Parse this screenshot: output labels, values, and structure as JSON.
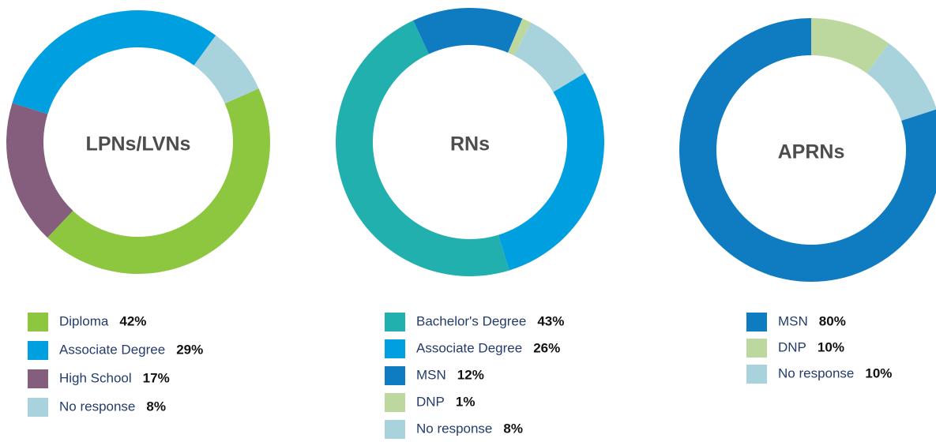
{
  "chart_data": [
    {
      "type": "donut",
      "title": "LPNs/LVNs",
      "categories": [
        "Diploma",
        "Associate Degree",
        "High School",
        "No response"
      ],
      "values": [
        42,
        29,
        17,
        8
      ],
      "value_labels": [
        "42%",
        "29%",
        "17%",
        "8%"
      ],
      "colors": [
        "#8dc63f",
        "#009fdf",
        "#845e7c",
        "#a8d2dc"
      ]
    },
    {
      "type": "donut",
      "title": "RNs",
      "categories": [
        "Bachelor's Degree",
        "Associate Degree",
        "MSN",
        "DNP",
        "No response"
      ],
      "values": [
        43,
        26,
        12,
        1,
        8
      ],
      "value_labels": [
        "43%",
        "26%",
        "12%",
        "1%",
        "8%"
      ],
      "colors": [
        "#21b0ae",
        "#009fdf",
        "#0f7cc2",
        "#bdd89f",
        "#a8d2dc"
      ]
    },
    {
      "type": "donut",
      "title": "APRNs",
      "categories": [
        "MSN",
        "DNP",
        "No response"
      ],
      "values": [
        80,
        10,
        10
      ],
      "value_labels": [
        "80%",
        "10%",
        "10%"
      ],
      "colors": [
        "#0f7cc2",
        "#bdd89f",
        "#a8d2dc"
      ]
    }
  ]
}
